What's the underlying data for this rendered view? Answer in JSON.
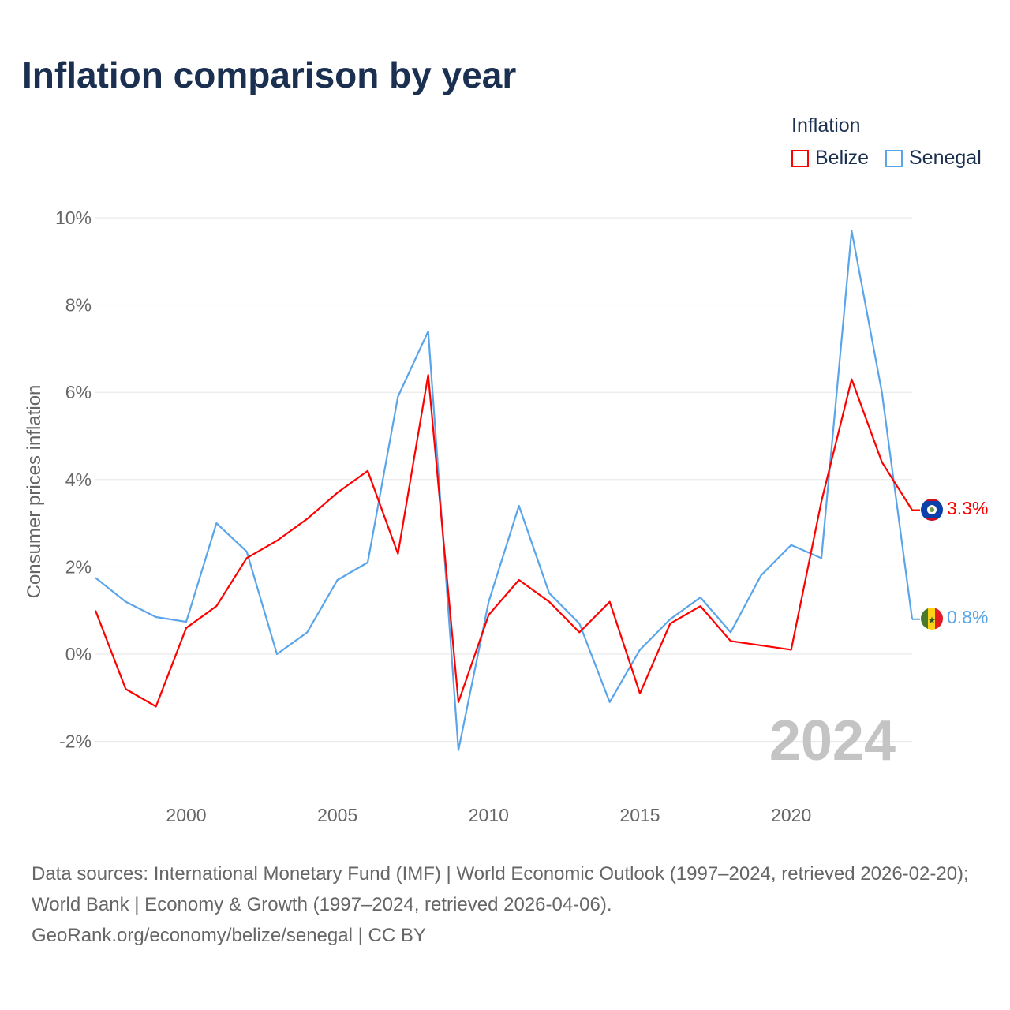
{
  "title": "Inflation comparison by year",
  "legend": {
    "title": "Inflation",
    "items": [
      {
        "label": "Belize",
        "color": "#ff0000"
      },
      {
        "label": "Senegal",
        "color": "#5aa5ea"
      }
    ]
  },
  "footer": {
    "line1": "Data sources: International Monetary Fund (IMF) | World Economic Outlook (1997–2024, retrieved 2026-02-20); World Bank | Economy & Growth (1997–2024, retrieved 2026-04-06).",
    "line2": "GeoRank.org/economy/belize/senegal | CC BY"
  },
  "chart_data": {
    "type": "line",
    "title": "Inflation comparison by year",
    "ylabel": "Consumer prices inflation",
    "xlabel": "",
    "ylim": [
      -3,
      10.5
    ],
    "yticks": [
      -2,
      0,
      2,
      4,
      6,
      8,
      10
    ],
    "ytick_labels": [
      "-2%",
      "0%",
      "2%",
      "4%",
      "6%",
      "8%",
      "10%"
    ],
    "xticks": [
      2000,
      2005,
      2010,
      2015,
      2020
    ],
    "xtick_labels": [
      "2000",
      "2005",
      "2010",
      "2015",
      "2020"
    ],
    "year_watermark": "2024",
    "x": [
      1997,
      1998,
      1999,
      2000,
      2001,
      2002,
      2003,
      2004,
      2005,
      2006,
      2007,
      2008,
      2009,
      2010,
      2011,
      2012,
      2013,
      2014,
      2015,
      2016,
      2017,
      2018,
      2019,
      2020,
      2021,
      2022,
      2023,
      2024
    ],
    "series": [
      {
        "name": "Belize",
        "color": "#ff0000",
        "end_label": "3.3%",
        "values": [
          1.0,
          -0.8,
          -1.2,
          0.6,
          1.1,
          2.2,
          2.6,
          3.1,
          3.7,
          4.2,
          2.3,
          6.4,
          -1.1,
          0.9,
          1.7,
          1.2,
          0.5,
          1.2,
          -0.9,
          0.7,
          1.1,
          0.3,
          0.2,
          0.1,
          3.5,
          6.3,
          4.4,
          3.3
        ]
      },
      {
        "name": "Senegal",
        "color": "#5aa5ea",
        "end_label": "0.8%",
        "values": [
          1.75,
          1.2,
          0.85,
          0.74,
          3.0,
          2.35,
          0.0,
          0.5,
          1.7,
          2.1,
          5.9,
          7.4,
          -2.2,
          1.2,
          3.4,
          1.4,
          0.7,
          -1.1,
          0.1,
          0.8,
          1.3,
          0.5,
          1.8,
          2.5,
          2.2,
          9.7,
          6.0,
          0.8
        ]
      }
    ],
    "grid": true,
    "legend_position": "top-right"
  }
}
